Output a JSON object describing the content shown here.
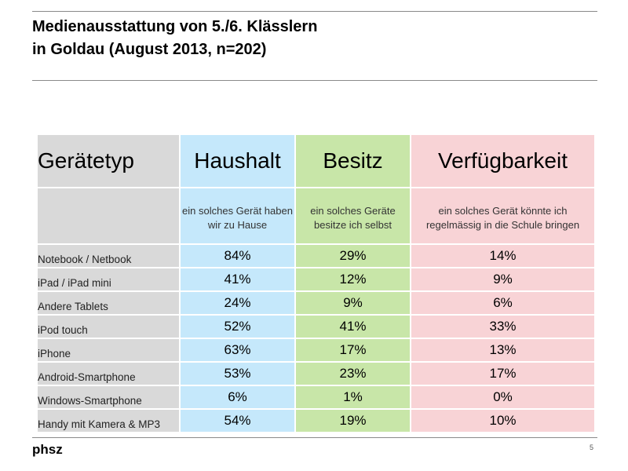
{
  "title_line1": "Medienausstattung von 5./6. Klässlern",
  "title_line2": "in Goldau (August 2013, n=202)",
  "table": {
    "headers": [
      "Gerätetyp",
      "Haushalt",
      "Besitz",
      "Verfügbarkeit"
    ],
    "subheaders": [
      "",
      "ein solches Gerät haben wir zu Hause",
      "ein solches Geräte besitze ich selbst",
      "ein solches Gerät könnte ich regelmässig in die Schule bringen"
    ],
    "rows": [
      [
        "Notebook / Netbook",
        "84%",
        "29%",
        "14%"
      ],
      [
        "iPad / iPad mini",
        "41%",
        "12%",
        "9%"
      ],
      [
        "Andere Tablets",
        "24%",
        "9%",
        "6%"
      ],
      [
        "iPod touch",
        "52%",
        "41%",
        "33%"
      ],
      [
        "iPhone",
        "63%",
        "17%",
        "13%"
      ],
      [
        "Android-Smartphone",
        "53%",
        "23%",
        "17%"
      ],
      [
        "Windows-Smartphone",
        "6%",
        "1%",
        "0%"
      ],
      [
        "Handy mit Kamera & MP3",
        "54%",
        "19%",
        "10%"
      ]
    ]
  },
  "colors": {
    "label_col": "#d9d9d9",
    "haushalt": "#c5e8fb",
    "besitz": "#c8e6a8",
    "verfuegbarkeit": "#f8d3d6"
  },
  "footer": {
    "logo": "phsz",
    "page": "5"
  }
}
